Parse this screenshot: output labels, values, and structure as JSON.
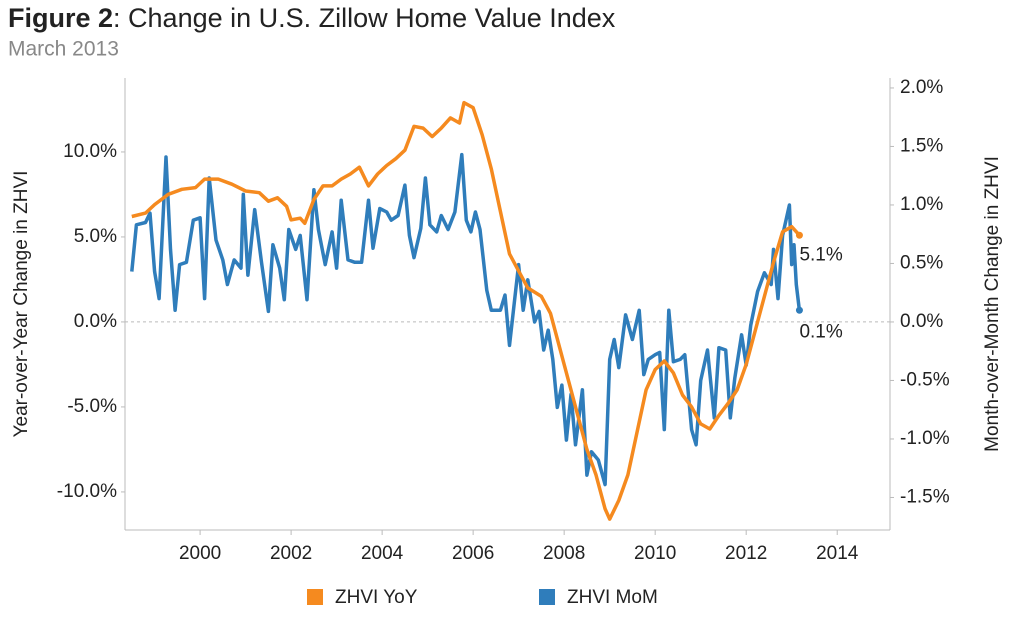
{
  "chart_data": {
    "type": "line",
    "title_prefix": "Figure 2",
    "title": ": Change in U.S. Zillow Home Value Index",
    "subtitle": "March 2013",
    "y_label": "Year-over-Year Change in ZHVI",
    "y2_label": "Month-over-Month Change in ZHVI",
    "xlim": [
      1998.35,
      2015.16
    ],
    "xticks": [
      2000,
      2002,
      2004,
      2006,
      2008,
      2010,
      2012,
      2014
    ],
    "ylim": [
      -12.24,
      14.35
    ],
    "yticks": [
      {
        "value": -10,
        "label": "-10.0%"
      },
      {
        "value": -5,
        "label": "-5.0%"
      },
      {
        "value": 0,
        "label": "0.0%"
      },
      {
        "value": 5,
        "label": "5.0%"
      },
      {
        "value": 10,
        "label": "10.0%"
      }
    ],
    "y2lim": [
      -1.778,
      2.085
    ],
    "y2ticks": [
      {
        "value": -1.5,
        "label": "-1.5%"
      },
      {
        "value": -1,
        "label": "-1.0%"
      },
      {
        "value": -0.5,
        "label": "-0.5%"
      },
      {
        "value": 0,
        "label": "0.0%"
      },
      {
        "value": 0.5,
        "label": "0.5%"
      },
      {
        "value": 1,
        "label": "1.0%"
      },
      {
        "value": 1.5,
        "label": "1.5%"
      },
      {
        "value": 2,
        "label": "2.0%"
      }
    ],
    "legend": "bottom",
    "series": [
      {
        "name": "ZHVI YoY",
        "color": "#f58a1f",
        "end_label": "5.1%",
        "x": [
          1998.5,
          1998.8,
          1999.0,
          1999.3,
          1999.6,
          1999.9,
          2000.1,
          2000.4,
          2000.7,
          2001.0,
          2001.3,
          2001.5,
          2001.7,
          2001.9,
          2002.0,
          2002.2,
          2002.3,
          2002.5,
          2002.7,
          2002.9,
          2003.1,
          2003.3,
          2003.5,
          2003.7,
          2003.9,
          2004.1,
          2004.3,
          2004.5,
          2004.7,
          2004.9,
          2005.1,
          2005.3,
          2005.5,
          2005.7,
          2005.8,
          2006.0,
          2006.2,
          2006.4,
          2006.6,
          2006.8,
          2007.0,
          2007.2,
          2007.5,
          2007.7,
          2007.9,
          2008.1,
          2008.3,
          2008.5,
          2008.7,
          2008.9,
          2009.0,
          2009.2,
          2009.4,
          2009.6,
          2009.8,
          2010.0,
          2010.2,
          2010.4,
          2010.6,
          2010.8,
          2011.0,
          2011.2,
          2011.4,
          2011.6,
          2011.8,
          2012.0,
          2012.2,
          2012.4,
          2012.6,
          2012.8,
          2013.0,
          2013.17
        ],
        "values": [
          6.2,
          6.4,
          6.9,
          7.5,
          7.8,
          7.9,
          8.4,
          8.4,
          8.1,
          7.7,
          7.6,
          7.1,
          7.3,
          6.8,
          6.0,
          6.1,
          5.8,
          7.2,
          8.0,
          8.0,
          8.4,
          8.7,
          9.1,
          8.0,
          8.7,
          9.2,
          9.6,
          10.1,
          11.5,
          11.4,
          10.9,
          11.4,
          12.0,
          11.7,
          12.9,
          12.6,
          11.0,
          9.0,
          6.5,
          4.0,
          3.0,
          2.0,
          1.5,
          0.5,
          -1.5,
          -3.5,
          -5.5,
          -7.5,
          -9.0,
          -11.0,
          -11.6,
          -10.5,
          -9.0,
          -6.5,
          -4.0,
          -2.8,
          -2.3,
          -3.0,
          -4.3,
          -5.0,
          -6.0,
          -6.3,
          -5.5,
          -4.8,
          -4.0,
          -2.5,
          -0.5,
          1.5,
          3.5,
          5.3,
          5.6,
          5.1
        ]
      },
      {
        "name": "ZHVI MoM",
        "color": "#2f7dbb",
        "axis": "y2",
        "end_label": "0.1%",
        "x": [
          1998.5,
          1998.6,
          1998.8,
          1998.9,
          1999.0,
          1999.1,
          1999.25,
          1999.35,
          1999.45,
          1999.55,
          1999.7,
          1999.85,
          2000.0,
          2000.1,
          2000.2,
          2000.35,
          2000.5,
          2000.6,
          2000.75,
          2000.9,
          2000.95,
          2001.05,
          2001.2,
          2001.35,
          2001.5,
          2001.6,
          2001.75,
          2001.85,
          2001.95,
          2002.1,
          2002.2,
          2002.35,
          2002.5,
          2002.6,
          2002.75,
          2002.9,
          2003.0,
          2003.1,
          2003.25,
          2003.4,
          2003.55,
          2003.7,
          2003.8,
          2003.95,
          2004.1,
          2004.2,
          2004.35,
          2004.5,
          2004.6,
          2004.7,
          2004.85,
          2004.95,
          2005.05,
          2005.2,
          2005.3,
          2005.45,
          2005.6,
          2005.75,
          2005.85,
          2005.95,
          2006.05,
          2006.15,
          2006.3,
          2006.4,
          2006.6,
          2006.7,
          2006.8,
          2006.9,
          2007.0,
          2007.1,
          2007.2,
          2007.35,
          2007.45,
          2007.55,
          2007.65,
          2007.75,
          2007.85,
          2007.95,
          2008.05,
          2008.15,
          2008.25,
          2008.4,
          2008.5,
          2008.6,
          2008.75,
          2008.9,
          2009.0,
          2009.1,
          2009.2,
          2009.35,
          2009.5,
          2009.65,
          2009.75,
          2009.85,
          2010.0,
          2010.1,
          2010.2,
          2010.3,
          2010.4,
          2010.55,
          2010.65,
          2010.8,
          2010.9,
          2011.0,
          2011.15,
          2011.3,
          2011.4,
          2011.55,
          2011.65,
          2011.75,
          2011.9,
          2012.0,
          2012.1,
          2012.25,
          2012.4,
          2012.55,
          2012.6,
          2012.7,
          2012.8,
          2012.95,
          2013.0,
          2013.05,
          2013.1,
          2013.17
        ],
        "values": [
          0.43,
          0.83,
          0.85,
          0.93,
          0.43,
          0.2,
          1.41,
          0.62,
          0.1,
          0.49,
          0.51,
          0.87,
          0.89,
          0.2,
          1.23,
          0.7,
          0.53,
          0.32,
          0.53,
          0.46,
          1.09,
          0.4,
          0.96,
          0.51,
          0.09,
          0.66,
          0.46,
          0.19,
          0.79,
          0.62,
          0.74,
          0.19,
          1.13,
          0.79,
          0.49,
          0.77,
          0.46,
          1.04,
          0.53,
          0.51,
          0.51,
          1.04,
          0.63,
          0.97,
          0.94,
          0.87,
          0.91,
          1.17,
          0.74,
          0.55,
          0.8,
          1.23,
          0.83,
          0.77,
          0.91,
          0.79,
          0.94,
          1.43,
          0.87,
          0.77,
          0.94,
          0.79,
          0.27,
          0.1,
          0.1,
          0.23,
          -0.2,
          0.15,
          0.49,
          0.1,
          0.36,
          0,
          0.09,
          -0.24,
          -0.07,
          -0.32,
          -0.73,
          -0.54,
          -1.01,
          -0.62,
          -1.05,
          -0.58,
          -1.31,
          -1.11,
          -1.18,
          -1.39,
          -0.32,
          -0.15,
          -0.39,
          0.06,
          -0.15,
          0.1,
          -0.45,
          -0.32,
          -0.28,
          -0.26,
          -0.92,
          0.1,
          -0.34,
          -0.32,
          -0.28,
          -0.92,
          -1.05,
          -0.5,
          -0.24,
          -0.82,
          -0.22,
          -0.24,
          -0.82,
          -0.48,
          -0.11,
          -0.37,
          -0.03,
          0.26,
          0.42,
          0.32,
          0.62,
          0.2,
          0.74,
          1.0,
          0.49,
          0.66,
          0.32,
          0.1
        ]
      }
    ]
  }
}
